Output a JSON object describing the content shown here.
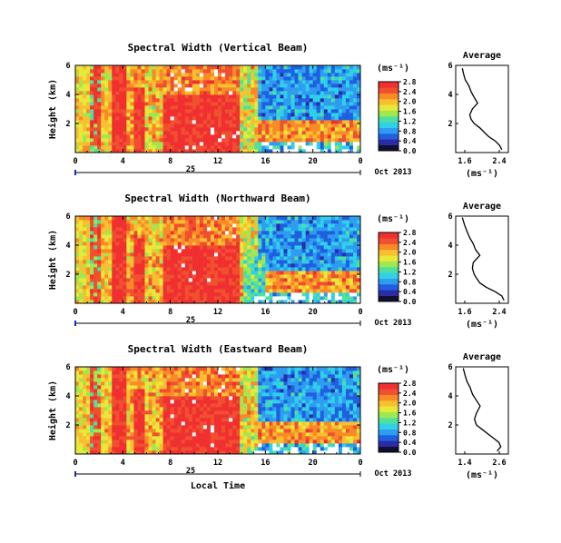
{
  "chart_data": [
    {
      "type": "heatmap",
      "title": "Spectral Width (Vertical Beam)",
      "ylabel": "Height (km)",
      "xlim": [
        0,
        24
      ],
      "ylim": [
        0,
        6
      ],
      "x_ticks": [
        "0",
        "4",
        "8",
        "12",
        "16",
        "20",
        "0"
      ],
      "y_ticks": [
        "2",
        "4",
        "6"
      ],
      "date_day": "25",
      "date_label": "Oct 2013",
      "colorbar": {
        "unit": "(ms⁻¹)",
        "ticks": [
          "0.0",
          "0.4",
          "0.8",
          "1.2",
          "1.6",
          "2.0",
          "2.4",
          "2.8"
        ]
      },
      "profile": {
        "title": "Average",
        "xlabel": "(ms⁻¹)",
        "x_ticks": [
          "1.6",
          "2.4"
        ],
        "y_ticks": [
          "2",
          "4",
          "6"
        ],
        "xlim": [
          1.4,
          2.6
        ],
        "points": [
          [
            2.45,
            0.2
          ],
          [
            2.4,
            0.5
          ],
          [
            2.3,
            0.8
          ],
          [
            2.15,
            1.1
          ],
          [
            2.05,
            1.4
          ],
          [
            1.95,
            1.7
          ],
          [
            1.82,
            2.0
          ],
          [
            1.75,
            2.3
          ],
          [
            1.72,
            2.6
          ],
          [
            1.78,
            3.0
          ],
          [
            1.9,
            3.4
          ],
          [
            1.82,
            3.8
          ],
          [
            1.75,
            4.2
          ],
          [
            1.7,
            4.6
          ],
          [
            1.62,
            5.0
          ],
          [
            1.58,
            5.4
          ],
          [
            1.55,
            5.8
          ]
        ]
      }
    },
    {
      "type": "heatmap",
      "title": "Spectral Width (Northward Beam)",
      "ylabel": "Height (km)",
      "xlim": [
        0,
        24
      ],
      "ylim": [
        0,
        6
      ],
      "x_ticks": [
        "0",
        "4",
        "8",
        "12",
        "16",
        "20",
        "0"
      ],
      "y_ticks": [
        "2",
        "4",
        "6"
      ],
      "date_day": "25",
      "date_label": "Oct 2013",
      "colorbar": {
        "unit": "(ms⁻¹)",
        "ticks": [
          "0.0",
          "0.4",
          "0.8",
          "1.2",
          "1.6",
          "2.0",
          "2.4",
          "2.8"
        ]
      },
      "profile": {
        "title": "Average",
        "xlabel": "(ms⁻¹)",
        "x_ticks": [
          "1.6",
          "2.4"
        ],
        "y_ticks": [
          "2",
          "4",
          "6"
        ],
        "xlim": [
          1.4,
          2.6
        ],
        "points": [
          [
            2.5,
            0.2
          ],
          [
            2.45,
            0.5
          ],
          [
            2.3,
            0.8
          ],
          [
            2.1,
            1.1
          ],
          [
            1.95,
            1.4
          ],
          [
            1.88,
            1.7
          ],
          [
            1.82,
            2.0
          ],
          [
            1.78,
            2.4
          ],
          [
            1.8,
            2.8
          ],
          [
            1.95,
            3.3
          ],
          [
            1.85,
            3.7
          ],
          [
            1.8,
            4.1
          ],
          [
            1.72,
            4.5
          ],
          [
            1.65,
            5.0
          ],
          [
            1.6,
            5.4
          ],
          [
            1.55,
            5.9
          ]
        ]
      }
    },
    {
      "type": "heatmap",
      "title": "Spectral Width (Eastward Beam)",
      "ylabel": "Height (km)",
      "xlabel": "Local Time",
      "xlim": [
        0,
        24
      ],
      "ylim": [
        0,
        6
      ],
      "x_ticks": [
        "0",
        "4",
        "8",
        "12",
        "16",
        "20",
        "0"
      ],
      "y_ticks": [
        "2",
        "4",
        "6"
      ],
      "date_day": "25",
      "date_label": "Oct 2013",
      "colorbar": {
        "unit": "(ms⁻¹)",
        "ticks": [
          "0.0",
          "0.4",
          "0.8",
          "1.2",
          "1.6",
          "2.0",
          "2.4",
          "2.8"
        ]
      },
      "profile": {
        "title": "Average",
        "xlabel": "(ms⁻¹)",
        "x_ticks": [
          "1.4",
          "2.6"
        ],
        "y_ticks": [
          "2",
          "4",
          "6"
        ],
        "xlim": [
          1.3,
          2.7
        ],
        "points": [
          [
            2.4,
            0.2
          ],
          [
            2.5,
            0.5
          ],
          [
            2.45,
            0.8
          ],
          [
            2.3,
            1.1
          ],
          [
            2.15,
            1.4
          ],
          [
            2.0,
            1.7
          ],
          [
            1.85,
            2.0
          ],
          [
            1.8,
            2.4
          ],
          [
            1.85,
            2.8
          ],
          [
            1.95,
            3.3
          ],
          [
            1.85,
            3.7
          ],
          [
            1.75,
            4.1
          ],
          [
            1.68,
            4.6
          ],
          [
            1.6,
            5.0
          ],
          [
            1.55,
            5.4
          ],
          [
            1.5,
            5.9
          ]
        ]
      }
    }
  ]
}
